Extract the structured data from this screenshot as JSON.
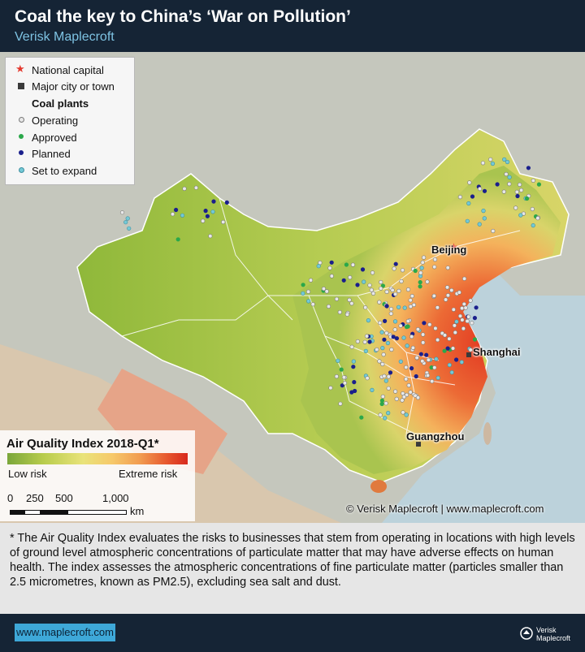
{
  "header": {
    "title": "Coal the key to China’s ‘War on Pollution’",
    "subtitle": "Verisk Maplecroft"
  },
  "legend": {
    "capital": "National capital",
    "city": "Major city or town",
    "heading": "Coal plants",
    "operating": "Operating",
    "approved": "Approved",
    "planned": "Planned",
    "expand": "Set to expand"
  },
  "colors": {
    "header_bg": "#152435",
    "subtitle": "#7ec3e3",
    "operating": "#e8e8e8",
    "approved": "#2aa84a",
    "planned": "#1a1f8c",
    "expand": "#74c9d6",
    "capital": "#e43a2f",
    "url_button": "#3ea8d8"
  },
  "aqi": {
    "title": "Air Quality Index 2018-Q1*",
    "low": "Low risk",
    "high": "Extreme risk",
    "scale": [
      "0",
      "250",
      "500",
      "1,000"
    ],
    "unit": "km"
  },
  "cities": {
    "beijing": "Beijing",
    "shanghai": "Shanghai",
    "guangzhou": "Guangzhou"
  },
  "copyright": "© Verisk Maplecroft | www.maplecroft.com",
  "note": "* The Air Quality Index evaluates the risks to businesses that stem from operating in locations with high levels of ground level atmospheric concentrations of particulate matter that may have adverse effects on human health. The index assesses the atmospheric concentrations of fine particulate matter (particles smaller than 2.5 micrometres, known as PM2.5), excluding sea salt and dust.",
  "footer": {
    "url": "www.maplecroft.com",
    "logo_line1": "Verisk",
    "logo_line2": "Maplecroft"
  }
}
